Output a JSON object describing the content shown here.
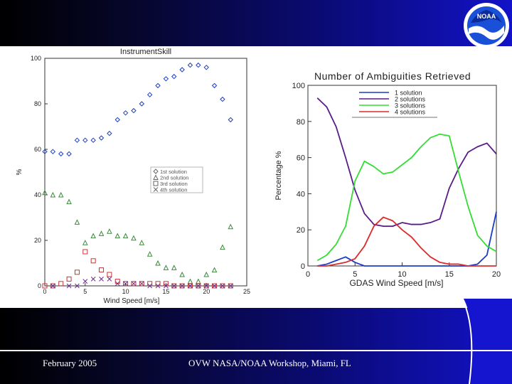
{
  "slide": {
    "footer_date": "February 2005",
    "footer_event": "OVW NASA/NOAA Workshop, Miami, FL",
    "logo_text": "NOAA"
  },
  "colors": {
    "background_dark": "#000000",
    "background_blue": "#1212c8",
    "series_1": "#1f3fbf",
    "series_2": "#3c8a3c",
    "series_3": "#cc3333",
    "series_4": "#6a2b8c",
    "amb_1": "#1c3cc8",
    "amb_2": "#5a1a8a",
    "amb_3": "#33dd33",
    "amb_4": "#dd2a2a"
  },
  "chart_data": [
    {
      "type": "scatter",
      "title": "InstrumentSkill",
      "xlabel": "Wind Speed [m/s]",
      "ylabel": "%",
      "xlim": [
        0,
        25
      ],
      "ylim": [
        0,
        100
      ],
      "xticks": [
        "0",
        "5",
        "10",
        "15",
        "20",
        "25"
      ],
      "yticks": [
        "0",
        "20",
        "40",
        "60",
        "80",
        "100"
      ],
      "legend": "center-right",
      "series": [
        {
          "name": "1st solution",
          "marker": "diamond",
          "x": [
            0,
            1,
            2,
            3,
            4,
            5,
            6,
            7,
            8,
            9,
            10,
            11,
            12,
            13,
            14,
            15,
            16,
            17,
            18,
            19,
            20,
            21,
            22,
            23
          ],
          "values": [
            59,
            59,
            58,
            58,
            64,
            64,
            64,
            65,
            67,
            73,
            76,
            77,
            80,
            84,
            88,
            91,
            92,
            95,
            97,
            97,
            96,
            88,
            82,
            73
          ]
        },
        {
          "name": "2nd solution",
          "marker": "triangle",
          "x": [
            0,
            1,
            2,
            3,
            4,
            5,
            6,
            7,
            8,
            9,
            10,
            11,
            12,
            13,
            14,
            15,
            16,
            17,
            18,
            19,
            20,
            21,
            22,
            23
          ],
          "values": [
            41,
            40,
            40,
            37,
            28,
            19,
            22,
            23,
            24,
            22,
            22,
            21,
            19,
            14,
            10,
            8,
            8,
            5,
            2,
            2,
            5,
            7,
            17,
            26
          ]
        },
        {
          "name": "3rd solution",
          "marker": "square",
          "x": [
            0,
            1,
            2,
            3,
            4,
            5,
            6,
            7,
            8,
            9,
            10,
            11,
            12,
            13,
            14,
            15,
            16,
            17,
            18,
            19,
            20,
            21,
            22,
            23
          ],
          "values": [
            0,
            0,
            1,
            3,
            6,
            15,
            11,
            7,
            5,
            2,
            1,
            1,
            1,
            1,
            1,
            1,
            0,
            0,
            0,
            0,
            0,
            0,
            0,
            0
          ]
        },
        {
          "name": "4th solution",
          "marker": "x",
          "x": [
            1,
            3,
            4,
            5,
            6,
            7,
            8,
            9,
            10,
            11,
            12,
            13,
            14,
            15,
            16,
            17,
            18,
            19,
            20,
            21,
            22,
            23
          ],
          "values": [
            0,
            0,
            0,
            2,
            3,
            3,
            3,
            1,
            1,
            1,
            1,
            0,
            0,
            0,
            0,
            0,
            0,
            0,
            0,
            0,
            0,
            0
          ]
        }
      ]
    },
    {
      "type": "line",
      "title": "Number of Ambiguities Retrieved",
      "xlabel": "GDAS Wind Speed [m/s]",
      "ylabel": "Percentage %",
      "xlim": [
        0,
        20
      ],
      "ylim": [
        0,
        100
      ],
      "xticks": [
        "0",
        "5",
        "10",
        "15",
        "20"
      ],
      "yticks": [
        "0",
        "20",
        "40",
        "60",
        "80",
        "100"
      ],
      "legend": "top-right",
      "series": [
        {
          "name": "1 solution",
          "x": [
            1,
            2,
            3,
            4,
            5,
            6,
            7,
            8,
            9,
            10,
            11,
            12,
            13,
            14,
            15,
            16,
            17,
            18,
            19,
            20
          ],
          "values": [
            0,
            1,
            3,
            5,
            2,
            0,
            0,
            0,
            0,
            0,
            0,
            0,
            0,
            0,
            0,
            0,
            0,
            1,
            6,
            30
          ]
        },
        {
          "name": "2 solutions",
          "x": [
            1,
            2,
            3,
            4,
            5,
            6,
            7,
            8,
            9,
            10,
            11,
            12,
            13,
            14,
            15,
            16,
            17,
            18,
            19,
            20
          ],
          "values": [
            93,
            88,
            77,
            60,
            42,
            29,
            23,
            22,
            22,
            24,
            23,
            23,
            24,
            26,
            43,
            54,
            63,
            66,
            68,
            62
          ]
        },
        {
          "name": "3 solutions",
          "x": [
            1,
            2,
            3,
            4,
            5,
            6,
            7,
            8,
            9,
            10,
            11,
            12,
            13,
            14,
            15,
            16,
            17,
            18,
            19,
            20
          ],
          "values": [
            3,
            6,
            12,
            22,
            47,
            58,
            55,
            51,
            52,
            56,
            60,
            66,
            71,
            73,
            72,
            52,
            33,
            17,
            11,
            8
          ]
        },
        {
          "name": "4 solutions",
          "x": [
            1,
            2,
            3,
            4,
            5,
            6,
            7,
            8,
            9,
            10,
            11,
            12,
            13,
            14,
            15,
            16,
            17,
            18,
            19,
            20
          ],
          "values": [
            0,
            0,
            1,
            2,
            4,
            11,
            22,
            27,
            25,
            20,
            16,
            10,
            5,
            2,
            1,
            1,
            0,
            0,
            0,
            0
          ]
        }
      ]
    }
  ]
}
